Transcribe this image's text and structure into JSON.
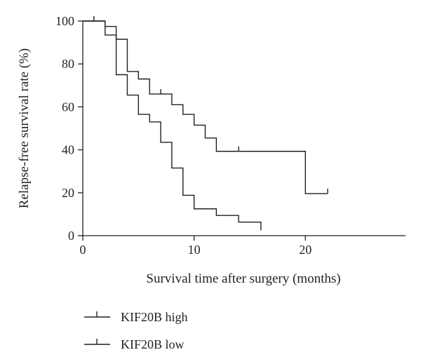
{
  "chart_data": {
    "type": "line",
    "subtype": "kaplan-meier",
    "title": "",
    "xlabel": "Survival time after surgery (months)",
    "ylabel": "Relapse-free survival rate (%)",
    "xlim": [
      0,
      29
    ],
    "ylim": [
      0,
      100
    ],
    "x_ticks": [
      0,
      10,
      20
    ],
    "y_ticks": [
      0,
      20,
      40,
      60,
      80,
      100
    ],
    "x_tick_labels": [
      "0",
      "10",
      "20"
    ],
    "y_tick_labels": [
      "0",
      "20",
      "40",
      "60",
      "80",
      "100"
    ],
    "grid": false,
    "legend_position": "bottom-left",
    "color": "#231f20",
    "series": [
      {
        "name": "KIF20B high",
        "steps": [
          [
            0,
            100
          ],
          [
            2,
            97.5
          ],
          [
            3,
            91.5
          ],
          [
            4,
            76.5
          ],
          [
            5,
            73
          ],
          [
            6,
            66
          ],
          [
            8,
            61
          ],
          [
            9,
            56.5
          ],
          [
            10,
            51.5
          ],
          [
            11,
            45.5
          ],
          [
            12,
            39.3
          ],
          [
            20,
            19.6
          ],
          [
            22,
            19.6
          ]
        ],
        "censored": [
          [
            1,
            100
          ],
          [
            7,
            66
          ],
          [
            14,
            39.3
          ],
          [
            22,
            19.6
          ]
        ]
      },
      {
        "name": "KIF20B low",
        "steps": [
          [
            0,
            100
          ],
          [
            2,
            93.5
          ],
          [
            3,
            75
          ],
          [
            4,
            65.5
          ],
          [
            5,
            56.5
          ],
          [
            6,
            53
          ],
          [
            7,
            43.5
          ],
          [
            8,
            31.5
          ],
          [
            9,
            18.8
          ],
          [
            10,
            12.5
          ],
          [
            12,
            9.4
          ],
          [
            14,
            6.3
          ],
          [
            16,
            2.5
          ]
        ],
        "censored": []
      }
    ]
  }
}
